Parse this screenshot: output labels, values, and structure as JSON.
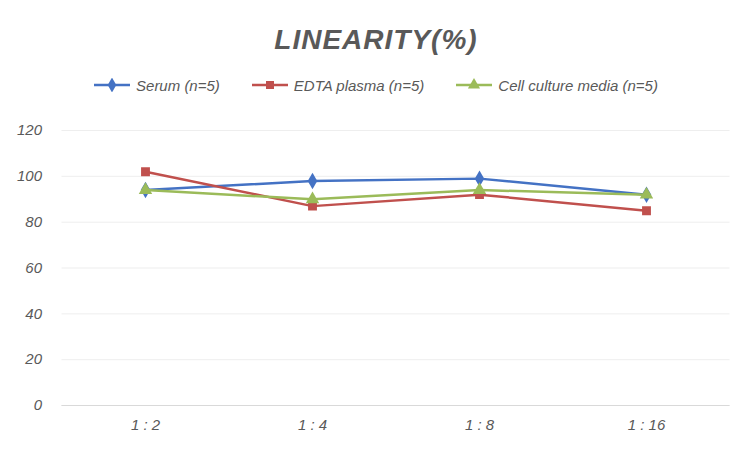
{
  "chart_data": {
    "type": "line",
    "title": "LINEARITY(%)",
    "categories": [
      "1 : 2",
      "1 : 4",
      "1 : 8",
      "1 : 16"
    ],
    "series": [
      {
        "name": "Serum (n=5)",
        "color": "#4472c4",
        "marker": "diamond",
        "values": [
          94,
          98,
          99,
          92
        ]
      },
      {
        "name": "EDTA plasma (n=5)",
        "color": "#c0504d",
        "marker": "square",
        "values": [
          102,
          87,
          92,
          85
        ]
      },
      {
        "name": "Cell culture media (n=5)",
        "color": "#9bbb59",
        "marker": "triangle",
        "values": [
          94,
          90,
          94,
          92
        ]
      }
    ],
    "ylim": [
      0,
      120
    ],
    "yticks": [
      0,
      20,
      40,
      60,
      80,
      100,
      120
    ],
    "grid": true,
    "legend": "top"
  }
}
